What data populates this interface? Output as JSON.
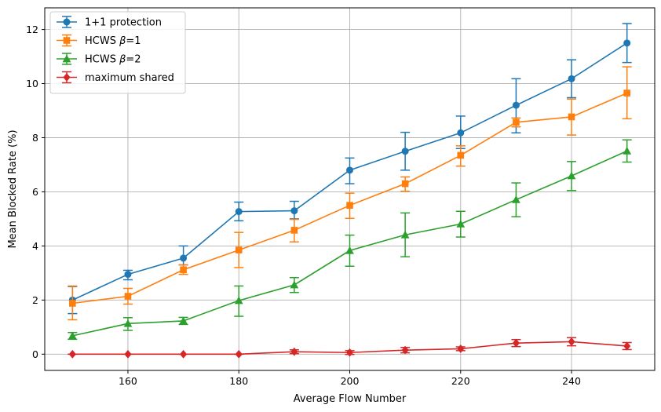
{
  "chart_data": {
    "type": "line",
    "title": "",
    "xlabel": "Average Flow Number",
    "ylabel": "Mean Blocked Rate (%)",
    "xlim": [
      145,
      255
    ],
    "ylim": [
      -0.6,
      12.8
    ],
    "xticks": [
      160,
      180,
      200,
      220,
      240
    ],
    "yticks": [
      0,
      2,
      4,
      6,
      8,
      10,
      12
    ],
    "grid": true,
    "legend_position": "top-left",
    "x": [
      150,
      160,
      170,
      180,
      190,
      200,
      210,
      220,
      230,
      240,
      250
    ],
    "series": [
      {
        "name": "1+1 protection",
        "color": "#1f77b4",
        "marker": "circle",
        "values": [
          2.0,
          2.95,
          3.55,
          5.27,
          5.3,
          6.8,
          7.5,
          8.18,
          9.2,
          10.18,
          11.5
        ],
        "err_low": [
          1.5,
          2.75,
          3.3,
          4.93,
          5.0,
          6.3,
          6.8,
          7.6,
          8.18,
          9.48,
          10.78
        ],
        "err_high": [
          2.5,
          3.1,
          4.0,
          5.62,
          5.65,
          7.25,
          8.2,
          8.8,
          10.18,
          10.88,
          12.22
        ]
      },
      {
        "name": "HCWS β=1",
        "legend_prefix": "HCWS ",
        "legend_symbol": "β",
        "legend_suffix": "=1",
        "color": "#ff7f0e",
        "marker": "square",
        "values": [
          1.88,
          2.14,
          3.12,
          3.85,
          4.58,
          5.5,
          6.3,
          7.35,
          8.57,
          8.77,
          9.65
        ],
        "err_low": [
          1.27,
          1.85,
          2.95,
          3.2,
          4.15,
          5.02,
          6.02,
          6.95,
          8.4,
          8.1,
          8.7
        ],
        "err_high": [
          2.52,
          2.43,
          3.3,
          4.5,
          4.98,
          5.95,
          6.55,
          7.7,
          8.73,
          9.43,
          10.62
        ]
      },
      {
        "name": "HCWS β=2",
        "legend_prefix": "HCWS ",
        "legend_symbol": "β",
        "legend_suffix": "=2",
        "color": "#2ca02c",
        "marker": "triangle",
        "values": [
          0.68,
          1.13,
          1.23,
          1.98,
          2.56,
          3.83,
          4.41,
          4.81,
          5.71,
          6.59,
          7.51
        ],
        "err_low": [
          0.55,
          0.88,
          1.1,
          1.4,
          2.28,
          3.25,
          3.6,
          4.33,
          5.08,
          6.05,
          7.1
        ],
        "err_high": [
          0.8,
          1.35,
          1.36,
          2.52,
          2.83,
          4.4,
          5.22,
          5.28,
          6.33,
          7.12,
          7.92
        ]
      },
      {
        "name": "maximum shared",
        "color": "#d62728",
        "marker": "diamond",
        "values": [
          0.0,
          0.0,
          0.0,
          0.0,
          0.09,
          0.06,
          0.15,
          0.2,
          0.41,
          0.46,
          0.3
        ],
        "err_low": [
          0.0,
          0.0,
          0.0,
          0.0,
          0.02,
          -0.01,
          0.05,
          0.13,
          0.28,
          0.31,
          0.17
        ],
        "err_high": [
          0.0,
          0.0,
          0.0,
          0.0,
          0.16,
          0.13,
          0.25,
          0.27,
          0.54,
          0.61,
          0.43
        ]
      }
    ]
  }
}
